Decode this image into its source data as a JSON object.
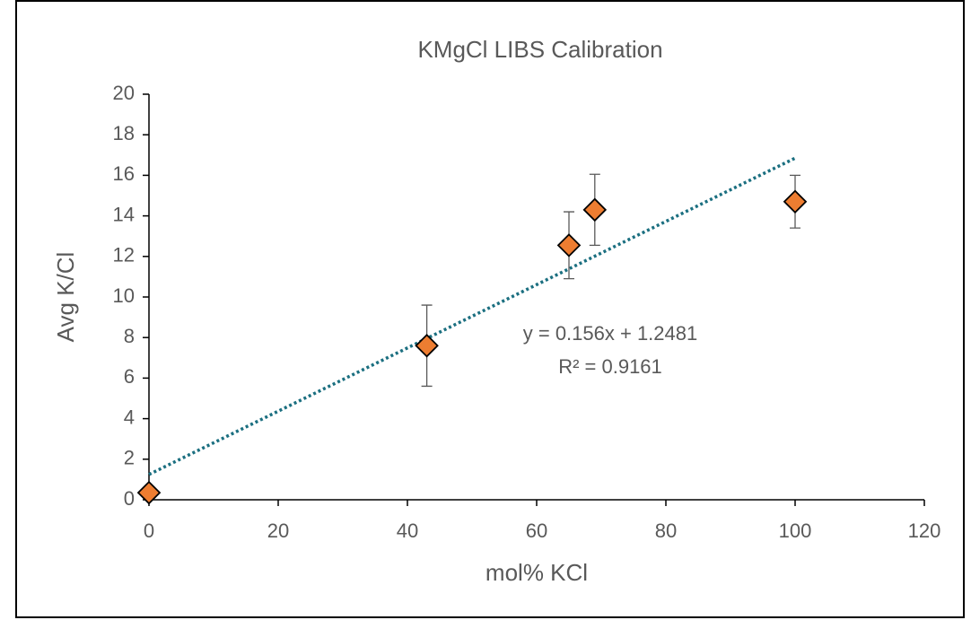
{
  "chart_data": {
    "type": "scatter",
    "title": "KMgCl LIBS Calibration",
    "x_label": "mol% KCl",
    "y_label": "Avg K/Cl",
    "series": [
      {
        "x": [
          0,
          43,
          65,
          69,
          100
        ],
        "y": [
          0.35,
          7.6,
          12.55,
          14.3,
          14.7
        ],
        "error": [
          0.2,
          2.0,
          1.65,
          1.75,
          1.3
        ],
        "color": "#ed7d31"
      }
    ],
    "trendline": {
      "label": "y = 0.156x + 1.2481",
      "r2_label": "R² = 0.9161",
      "slope": 0.156,
      "intercept": 1.2481,
      "x_range": [
        0,
        100
      ],
      "color": "#1b6f80"
    },
    "xlim": [
      0,
      120
    ],
    "xticks": [
      0,
      20,
      40,
      60,
      80,
      100,
      120
    ],
    "ylim": [
      0,
      20
    ],
    "yticks": [
      0,
      2,
      4,
      6,
      8,
      10,
      12,
      14,
      16,
      18,
      20
    ]
  }
}
